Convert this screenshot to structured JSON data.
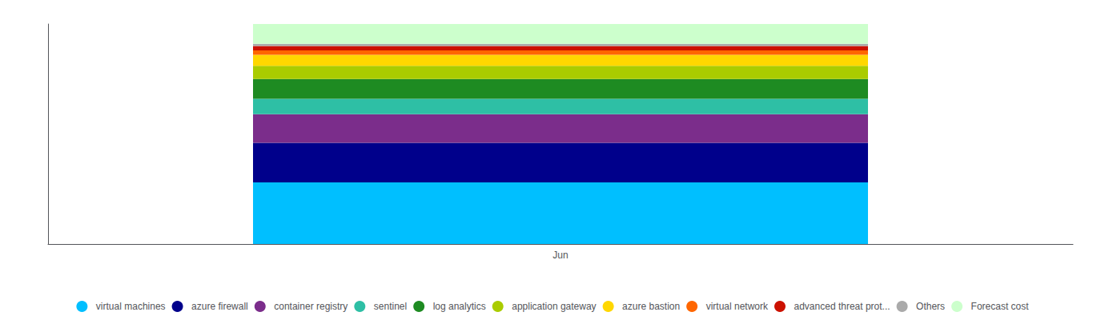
{
  "chart_data": {
    "type": "bar",
    "stacked": true,
    "categories": [
      "Jun"
    ],
    "series": [
      {
        "name": "virtual machines",
        "color": "#00BFFF",
        "values": [
          28
        ]
      },
      {
        "name": "azure firewall",
        "color": "#00008B",
        "values": [
          18
        ]
      },
      {
        "name": "container registry",
        "color": "#7B2D8B",
        "values": [
          13
        ]
      },
      {
        "name": "sentinel",
        "color": "#2EBFA5",
        "values": [
          7
        ]
      },
      {
        "name": "log analytics",
        "color": "#1E8B22",
        "values": [
          9
        ]
      },
      {
        "name": "application gateway",
        "color": "#AACC00",
        "values": [
          6
        ]
      },
      {
        "name": "azure bastion",
        "color": "#FFD700",
        "values": [
          5
        ]
      },
      {
        "name": "virtual network",
        "color": "#FF6600",
        "values": [
          2
        ]
      },
      {
        "name": "advanced threat prot...",
        "color": "#CC1100",
        "values": [
          2
        ]
      },
      {
        "name": "Others",
        "color": "#AAAAAA",
        "values": [
          1
        ]
      },
      {
        "name": "Forecast cost",
        "color": "#CCFFCC",
        "values": [
          9
        ]
      }
    ],
    "ylim": [
      0,
      100
    ],
    "tick_labels": "x",
    "grid": false,
    "legend": "bottom"
  }
}
